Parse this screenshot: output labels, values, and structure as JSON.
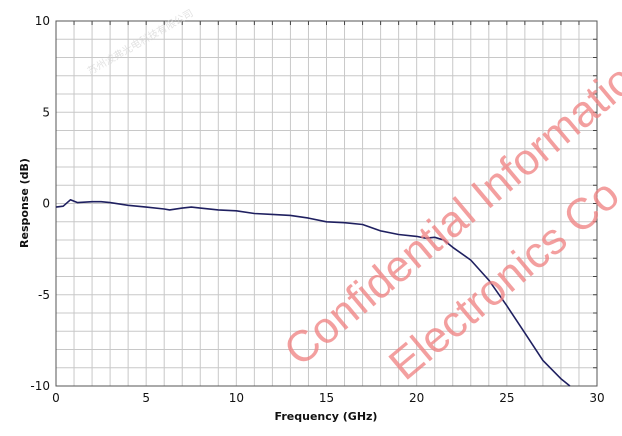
{
  "chart_data": {
    "type": "line",
    "title": "",
    "xlabel": "Frequency (GHz)",
    "ylabel": "Response (dB)",
    "xlim": [
      0,
      30
    ],
    "ylim": [
      -10,
      10
    ],
    "xticks": [
      0,
      5,
      10,
      15,
      20,
      25,
      30
    ],
    "yticks": [
      -10,
      -5,
      0,
      5,
      10
    ],
    "grid": true,
    "grid_step": {
      "x": 1,
      "y": 1
    },
    "line_color": "#1f2060",
    "series": [
      {
        "x": [
          0,
          0.4,
          0.8,
          1.2,
          2,
          2.5,
          3,
          4,
          5,
          6,
          6.3,
          7,
          7.5,
          8,
          9,
          10,
          11,
          12,
          13,
          14,
          15,
          16,
          17,
          18,
          19,
          20,
          20.5,
          21,
          21.5,
          22,
          23,
          24,
          25,
          26,
          27,
          28,
          28.5
        ],
        "y": [
          -0.2,
          -0.15,
          0.2,
          0.05,
          0.1,
          0.1,
          0.05,
          -0.1,
          -0.2,
          -0.3,
          -0.35,
          -0.25,
          -0.2,
          -0.25,
          -0.35,
          -0.4,
          -0.55,
          -0.6,
          -0.65,
          -0.8,
          -1.0,
          -1.05,
          -1.15,
          -1.5,
          -1.7,
          -1.8,
          -1.9,
          -1.85,
          -2.0,
          -2.4,
          -3.1,
          -4.2,
          -5.6,
          -7.1,
          -8.6,
          -9.6,
          -10
        ]
      }
    ]
  },
  "watermark": {
    "lines": [
      "Confidential Information under N",
      "Electronics Co., Ltd."
    ],
    "company_cn": "苏州波弗光电科技有限公司"
  }
}
